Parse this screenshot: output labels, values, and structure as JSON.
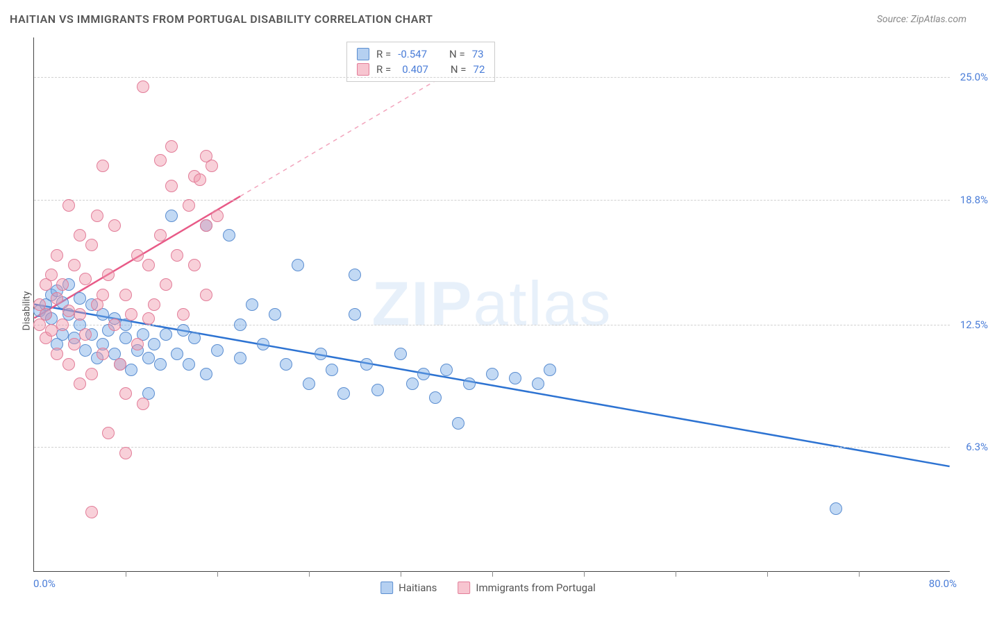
{
  "title": "HAITIAN VS IMMIGRANTS FROM PORTUGAL DISABILITY CORRELATION CHART",
  "source_label": "Source:",
  "source_name": "ZipAtlas.com",
  "y_axis_title": "Disability",
  "watermark_a": "ZIP",
  "watermark_b": "atlas",
  "chart": {
    "type": "scatter",
    "xlim": [
      0,
      80
    ],
    "ylim": [
      0,
      27
    ],
    "x_ticks_labels": [
      {
        "x": 0,
        "label": "0.0%"
      },
      {
        "x": 80,
        "label": "80.0%"
      }
    ],
    "x_ticks_minor": [
      8,
      16,
      24,
      32,
      40,
      48,
      56,
      64,
      72
    ],
    "y_ticks": [
      {
        "y": 6.3,
        "label": "6.3%"
      },
      {
        "y": 12.5,
        "label": "12.5%"
      },
      {
        "y": 18.8,
        "label": "18.8%"
      },
      {
        "y": 25.0,
        "label": "25.0%"
      }
    ],
    "grid_color": "#d0d0d0",
    "background_color": "#ffffff",
    "series": [
      {
        "name": "Haitians",
        "color_fill": "rgba(120,170,230,0.45)",
        "color_stroke": "#5a8dd0",
        "trend_color": "#2d73d2",
        "trend": {
          "x1": 0,
          "y1": 13.5,
          "x2": 80,
          "y2": 5.3,
          "dash_after_x": null
        },
        "R": -0.547,
        "N": 73,
        "points": [
          [
            0.5,
            13.2
          ],
          [
            1,
            13.5
          ],
          [
            1,
            13.0
          ],
          [
            1.5,
            14.0
          ],
          [
            1.5,
            12.8
          ],
          [
            2,
            14.2
          ],
          [
            2,
            11.5
          ],
          [
            2.5,
            13.6
          ],
          [
            2.5,
            12.0
          ],
          [
            3,
            13.0
          ],
          [
            3,
            14.5
          ],
          [
            3.5,
            11.8
          ],
          [
            4,
            12.5
          ],
          [
            4,
            13.8
          ],
          [
            4.5,
            11.2
          ],
          [
            5,
            12.0
          ],
          [
            5,
            13.5
          ],
          [
            5.5,
            10.8
          ],
          [
            6,
            11.5
          ],
          [
            6,
            13.0
          ],
          [
            6.5,
            12.2
          ],
          [
            7,
            11.0
          ],
          [
            7,
            12.8
          ],
          [
            7.5,
            10.5
          ],
          [
            8,
            11.8
          ],
          [
            8,
            12.5
          ],
          [
            8.5,
            10.2
          ],
          [
            9,
            11.2
          ],
          [
            9.5,
            12.0
          ],
          [
            10,
            10.8
          ],
          [
            10,
            9.0
          ],
          [
            10.5,
            11.5
          ],
          [
            11,
            10.5
          ],
          [
            11.5,
            12.0
          ],
          [
            12,
            18.0
          ],
          [
            12.5,
            11.0
          ],
          [
            13,
            12.2
          ],
          [
            13.5,
            10.5
          ],
          [
            14,
            11.8
          ],
          [
            15,
            10.0
          ],
          [
            15,
            17.5
          ],
          [
            16,
            11.2
          ],
          [
            17,
            17.0
          ],
          [
            18,
            10.8
          ],
          [
            18,
            12.5
          ],
          [
            19,
            13.5
          ],
          [
            20,
            11.5
          ],
          [
            21,
            13.0
          ],
          [
            22,
            10.5
          ],
          [
            23,
            15.5
          ],
          [
            24,
            9.5
          ],
          [
            25,
            11.0
          ],
          [
            26,
            10.2
          ],
          [
            27,
            9.0
          ],
          [
            28,
            15.0
          ],
          [
            28,
            13.0
          ],
          [
            29,
            10.5
          ],
          [
            30,
            9.2
          ],
          [
            32,
            11.0
          ],
          [
            33,
            9.5
          ],
          [
            34,
            10.0
          ],
          [
            35,
            8.8
          ],
          [
            36,
            10.2
          ],
          [
            37,
            7.5
          ],
          [
            38,
            9.5
          ],
          [
            40,
            10.0
          ],
          [
            42,
            9.8
          ],
          [
            44,
            9.5
          ],
          [
            45,
            10.2
          ],
          [
            70,
            3.2
          ]
        ]
      },
      {
        "name": "Immigrants from Portugal",
        "color_fill": "rgba(240,150,170,0.45)",
        "color_stroke": "#e27c98",
        "trend_color": "#e85a87",
        "trend": {
          "x1": 0,
          "y1": 12.8,
          "x2": 40,
          "y2": 26.5,
          "solid_until_x": 18
        },
        "R": 0.407,
        "N": 72,
        "points": [
          [
            0.5,
            12.5
          ],
          [
            0.5,
            13.5
          ],
          [
            1,
            11.8
          ],
          [
            1,
            14.5
          ],
          [
            1,
            13.0
          ],
          [
            1.5,
            12.2
          ],
          [
            1.5,
            15.0
          ],
          [
            2,
            11.0
          ],
          [
            2,
            13.8
          ],
          [
            2,
            16.0
          ],
          [
            2.5,
            14.5
          ],
          [
            2.5,
            12.5
          ],
          [
            3,
            18.5
          ],
          [
            3,
            13.2
          ],
          [
            3,
            10.5
          ],
          [
            3.5,
            15.5
          ],
          [
            3.5,
            11.5
          ],
          [
            4,
            17.0
          ],
          [
            4,
            13.0
          ],
          [
            4,
            9.5
          ],
          [
            4.5,
            14.8
          ],
          [
            4.5,
            12.0
          ],
          [
            5,
            16.5
          ],
          [
            5,
            10.0
          ],
          [
            5,
            3.0
          ],
          [
            5.5,
            13.5
          ],
          [
            5.5,
            18.0
          ],
          [
            6,
            20.5
          ],
          [
            6,
            14.0
          ],
          [
            6,
            11.0
          ],
          [
            6.5,
            7.0
          ],
          [
            6.5,
            15.0
          ],
          [
            7,
            12.5
          ],
          [
            7,
            17.5
          ],
          [
            7.5,
            10.5
          ],
          [
            8,
            9.0
          ],
          [
            8,
            14.0
          ],
          [
            8.5,
            13.0
          ],
          [
            9,
            16.0
          ],
          [
            9,
            11.5
          ],
          [
            9.5,
            24.5
          ],
          [
            9.5,
            8.5
          ],
          [
            10,
            12.8
          ],
          [
            10,
            15.5
          ],
          [
            10.5,
            13.5
          ],
          [
            11,
            20.8
          ],
          [
            11,
            17.0
          ],
          [
            11.5,
            14.5
          ],
          [
            12,
            21.5
          ],
          [
            12,
            19.5
          ],
          [
            12.5,
            16.0
          ],
          [
            13,
            13.0
          ],
          [
            13.5,
            18.5
          ],
          [
            14,
            15.5
          ],
          [
            14,
            20.0
          ],
          [
            14.5,
            19.8
          ],
          [
            15,
            17.5
          ],
          [
            15,
            14.0
          ],
          [
            15,
            21.0
          ],
          [
            15.5,
            20.5
          ],
          [
            16,
            18.0
          ],
          [
            8,
            6.0
          ]
        ]
      }
    ]
  },
  "stats_box": {
    "rows": [
      {
        "swatch": "blue",
        "R_label": "R =",
        "R_val": "-0.547",
        "N_label": "N =",
        "N_val": "73"
      },
      {
        "swatch": "pink",
        "R_label": "R =",
        "R_val": "0.407",
        "N_label": "N =",
        "N_val": "72"
      }
    ]
  },
  "legend": [
    {
      "swatch": "blue",
      "label": "Haitians"
    },
    {
      "swatch": "pink",
      "label": "Immigrants from Portugal"
    }
  ]
}
